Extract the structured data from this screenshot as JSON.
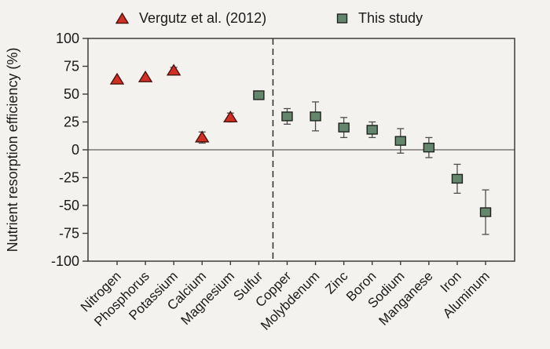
{
  "figure": {
    "background": "#f4f2ee",
    "frame_color": "#3c3c3c",
    "zero_line_color": "#5f5f5f",
    "error_bar_color": "#4d4d4d"
  },
  "legend": {
    "items": [
      {
        "label": "Vergutz et al. (2012)",
        "marker": "triangle",
        "fill": "#d02f24",
        "stroke": "#4a120c"
      },
      {
        "label": "This study",
        "marker": "square",
        "fill": "#64866c",
        "stroke": "#20231f"
      }
    ]
  },
  "chart_data": {
    "type": "scatter",
    "title": "",
    "xlabel": "",
    "ylabel": "Nutrient resorption efficiency (%)",
    "ylim": [
      -100,
      100
    ],
    "yticks": [
      100,
      75,
      50,
      25,
      0,
      -25,
      -50,
      -75,
      -100
    ],
    "grid": false,
    "zero_line": true,
    "legend_position": "top",
    "separator_after": "Sulfur",
    "separator_style": "dashed",
    "categories": [
      "Nitrogen",
      "Phosphorus",
      "Potassium",
      "Calcium",
      "Magnesium",
      "Sulfur",
      "Copper",
      "Molybdenum",
      "Zinc",
      "Boron",
      "Sodium",
      "Manganese",
      "Iron",
      "Aluminum"
    ],
    "series": [
      {
        "name": "Vergutz et al. (2012)",
        "marker": "triangle",
        "color": "#d02f24",
        "edge_color": "#4a120c",
        "values": [
          63,
          65,
          71,
          11,
          29,
          null,
          null,
          null,
          null,
          null,
          null,
          null,
          null,
          null
        ],
        "errors": [
          0,
          0,
          3,
          5,
          4,
          null,
          null,
          null,
          null,
          null,
          null,
          null,
          null,
          null
        ]
      },
      {
        "name": "This study",
        "marker": "square",
        "color": "#64866c",
        "edge_color": "#20231f",
        "values": [
          null,
          null,
          null,
          null,
          null,
          49,
          30,
          30,
          20,
          18,
          8,
          2,
          -26,
          -56
        ],
        "errors": [
          null,
          null,
          null,
          null,
          null,
          0,
          7,
          13,
          9,
          7,
          11,
          9,
          13,
          20
        ]
      }
    ]
  }
}
